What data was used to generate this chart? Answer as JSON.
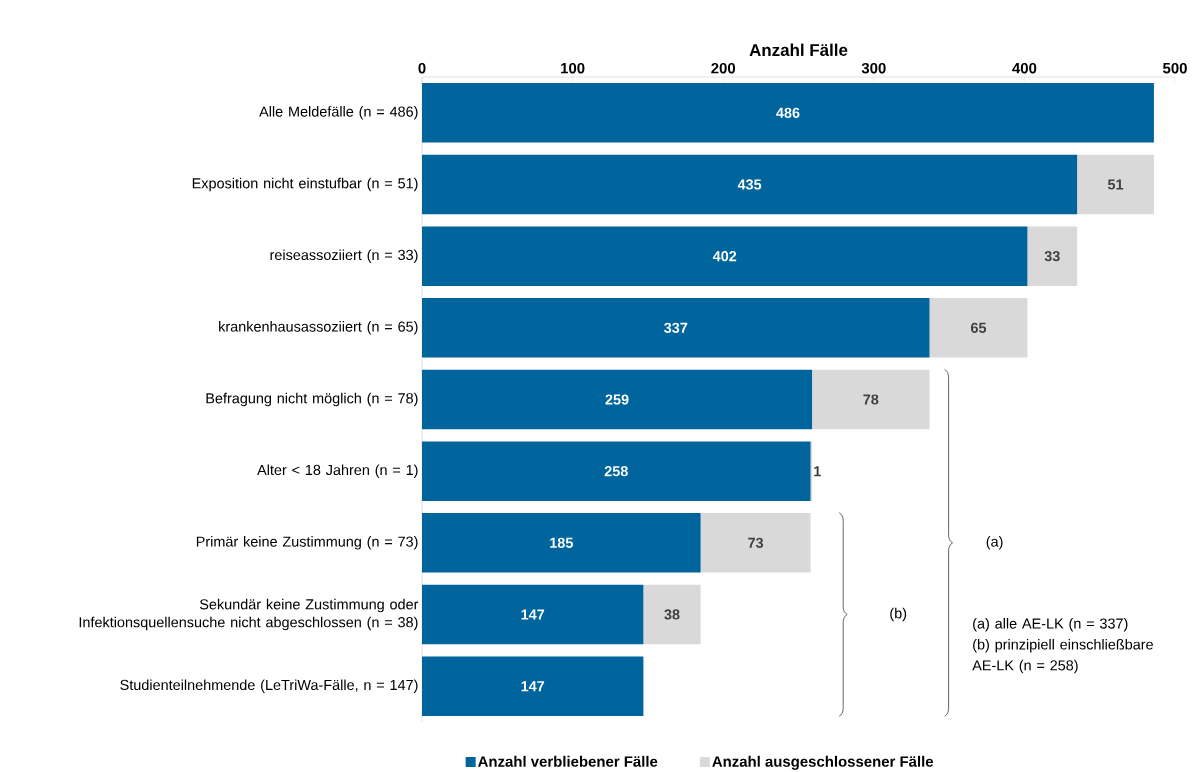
{
  "chart_data": {
    "type": "bar",
    "orientation": "horizontal",
    "stacked": true,
    "xlabel": "Anzahl Fälle",
    "categories": [
      "Alle Meldefälle (n = 486)",
      "Exposition nicht einstufbar (n = 51)",
      "reiseassoziiert (n = 33)",
      "krankenhausassoziiert (n = 65)",
      "Befragung nicht möglich (n = 78)",
      "Alter < 18 Jahren  (n = 1)",
      "Primär keine Zustimmung (n = 73)",
      "Sekundär keine Zustimmung oder Infektionsquellensuche nicht abgeschlossen (n = 38)",
      "Studienteilnehmende (LeTriWa-Fälle, n = 147)"
    ],
    "series": [
      {
        "name": "Anzahl verbliebener Fälle",
        "color": "#00659c",
        "values": [
          486,
          435,
          402,
          337,
          259,
          258,
          185,
          147,
          147
        ]
      },
      {
        "name": "Anzahl ausgeschlossener Fälle",
        "color": "#d9d9d9",
        "values": [
          null,
          51,
          33,
          65,
          78,
          1,
          73,
          38,
          null
        ]
      }
    ],
    "xlim": [
      0,
      500
    ],
    "xticks": [
      0,
      100,
      200,
      300,
      400,
      500
    ],
    "data_labels": true,
    "legend": "bottom",
    "grid": false,
    "annotations": [
      "(a)",
      "(b)",
      "(a) alle AE-LK (n = 337)",
      "(b) prinzipiell einschließbare AE-LK (n = 258)"
    ]
  }
}
